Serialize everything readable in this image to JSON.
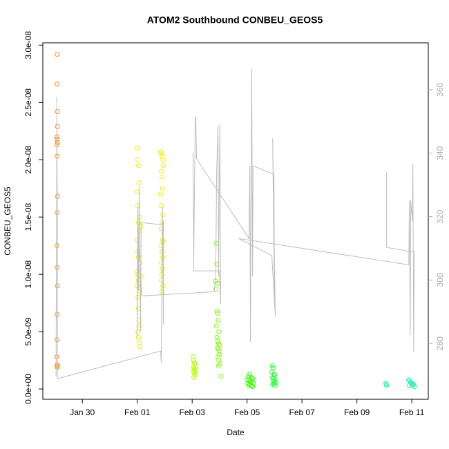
{
  "chart_data": {
    "type": "scatter",
    "title": "ATOM2 Southbound CONBEU_GEOS5",
    "x_label": "Date",
    "y_label": "CONBEU_GEOS5",
    "xlim": [
      28.56,
      42.6
    ],
    "xticks": [
      {
        "value": 30,
        "label": "Jan 30"
      },
      {
        "value": 32,
        "label": "Feb 01"
      },
      {
        "value": 34,
        "label": "Feb 03"
      },
      {
        "value": 36,
        "label": "Feb 05"
      },
      {
        "value": 38,
        "label": "Feb 07"
      },
      {
        "value": 40,
        "label": "Feb 09"
      },
      {
        "value": 42,
        "label": "Feb 11"
      }
    ],
    "ylim": [
      -9e-10,
      3.02e-08
    ],
    "yticks": [
      {
        "value": 0,
        "label": "0.0e+00"
      },
      {
        "value": 5e-09,
        "label": "5.0e-09"
      },
      {
        "value": 1e-08,
        "label": "1.0e-08"
      },
      {
        "value": 1.5e-08,
        "label": "1.5e-08"
      },
      {
        "value": 2e-08,
        "label": "2.0e-08"
      },
      {
        "value": 2.5e-08,
        "label": "2.5e-08"
      },
      {
        "value": 3e-08,
        "label": "3.0e-08"
      }
    ],
    "y2lim": [
      262.4,
      374.8
    ],
    "y2ticks": [
      280,
      300,
      320,
      340,
      360
    ],
    "series": [
      {
        "type": "scatter",
        "color": "#ff8c00",
        "x": [
          29.08,
          29.08,
          29.09,
          29.09,
          29.07,
          29.08,
          29.09,
          29.07,
          29.08,
          29.09,
          29.08,
          29.07,
          29.08,
          29.09,
          29.08,
          29.08,
          29.07,
          29.08,
          29.09,
          29.08
        ],
        "values": [
          2.92e-08,
          2.66e-08,
          2.42e-08,
          2.29e-08,
          2.2e-08,
          2.18e-08,
          2.15e-08,
          2.13e-08,
          2.03e-08,
          1.68e-08,
          1.54e-08,
          1.25e-08,
          1.06e-08,
          9e-09,
          6.5e-09,
          4.3e-09,
          2.8e-09,
          2.1e-09,
          2e-09,
          1.9e-09
        ]
      },
      {
        "type": "scatter",
        "color": "#eaf200",
        "x": [
          31.99,
          32.02,
          32.04,
          32.07,
          31.99,
          32.02,
          32.1,
          32.04,
          32.14,
          32.07,
          31.99,
          32.02,
          32.04,
          32.1,
          32.07,
          31.99,
          32.02,
          32.14,
          32.04,
          32.07,
          31.99,
          32.1,
          32.02,
          32.04,
          32.07,
          32.1,
          32.02,
          32.04,
          32.07,
          32.1
        ],
        "values": [
          2.1e-08,
          2e-08,
          1.95e-08,
          1.8e-08,
          1.72e-08,
          1.6e-08,
          1.5e-08,
          1.45e-08,
          1.42e-08,
          1.38e-08,
          1.3e-08,
          1.2e-08,
          1.15e-08,
          1.1e-08,
          1.05e-08,
          1.02e-08,
          1e-08,
          9.8e-09,
          9.5e-09,
          9.2e-09,
          9e-09,
          8.5e-09,
          8e-09,
          7e-09,
          6e-09,
          5.5e-09,
          5e-09,
          4.5e-09,
          4e-09,
          3.7e-09
        ]
      },
      {
        "type": "scatter",
        "color": "#eaf200",
        "x": [
          32.85,
          32.88,
          32.9,
          32.93,
          32.95,
          32.87,
          32.9,
          32.92,
          32.85,
          32.88,
          32.93,
          32.9,
          32.87,
          32.92,
          32.95,
          32.88,
          32.9,
          32.93,
          32.87,
          32.92,
          32.9,
          32.88,
          32.93,
          32.9
        ],
        "values": [
          2.07e-08,
          2.05e-08,
          2.03e-08,
          2e-08,
          1.95e-08,
          1.9e-08,
          1.85e-08,
          1.75e-08,
          1.7e-08,
          1.6e-08,
          1.52e-08,
          1.45e-08,
          1.4e-08,
          1.3e-08,
          1.28e-08,
          1.25e-08,
          1.2e-08,
          1.15e-08,
          1.1e-08,
          1.05e-08,
          1e-08,
          9.5e-09,
          9e-09,
          8.5e-09
        ]
      },
      {
        "type": "scatter",
        "color": "#b4ff00",
        "x": [
          34.03,
          34.05,
          34.08,
          34.1,
          34.13,
          34.04,
          34.07,
          34.09,
          34.12,
          34.05,
          34.08,
          34.1,
          34.06
        ],
        "values": [
          2.8e-09,
          2.5e-09,
          2.3e-09,
          2.2e-09,
          2e-09,
          1.9e-09,
          1.8e-09,
          1.7e-09,
          1.6e-09,
          1.5e-09,
          1.4e-09,
          1.2e-09,
          1e-09
        ]
      },
      {
        "type": "scatter",
        "color": "#7cff00",
        "x": [
          34.88,
          34.9,
          34.85,
          34.93,
          34.87,
          34.9,
          34.92,
          34.95,
          34.88,
          34.97,
          34.9,
          34.93,
          34.96,
          34.99,
          34.92,
          34.95,
          34.98,
          35.0,
          34.94,
          34.97,
          35.01,
          34.96,
          35.05
        ],
        "values": [
          1.27e-08,
          1.09e-08,
          9.4e-09,
          9.2e-09,
          8.7e-09,
          6.8e-09,
          6.6e-09,
          6e-09,
          5.5e-09,
          5e-09,
          4.5e-09,
          4.2e-09,
          4e-09,
          3.8e-09,
          3.6e-09,
          3.5e-09,
          3.3e-09,
          3e-09,
          2.8e-09,
          2.5e-09,
          2.2e-09,
          2e-09,
          1.1e-09
        ]
      },
      {
        "type": "scatter",
        "color": "#33ff00",
        "x": [
          36.1,
          36.05,
          36.15,
          36.2,
          36.0,
          36.08,
          36.12,
          36.18,
          36.23,
          36.03,
          36.1,
          36.16,
          36.07,
          36.2
        ],
        "values": [
          1.3e-09,
          1.1e-09,
          1e-09,
          9e-10,
          8e-10,
          8e-10,
          7e-10,
          6e-10,
          5e-10,
          5e-10,
          4e-10,
          3e-10,
          3e-10,
          2e-10
        ]
      },
      {
        "type": "scatter",
        "color": "#22ff33",
        "x": [
          36.92,
          36.95,
          36.9,
          36.98,
          37.0,
          36.93,
          36.97,
          37.02,
          36.95,
          37.05,
          36.99,
          36.93,
          37.01
        ],
        "values": [
          2e-09,
          1.8e-09,
          1.5e-09,
          1.3e-09,
          1.2e-09,
          1e-09,
          9e-10,
          8e-10,
          7e-10,
          6e-10,
          5e-10,
          4e-10,
          3e-10
        ]
      },
      {
        "type": "scatter",
        "color": "#33ffaa",
        "x": [
          41.05,
          41.07,
          41.06,
          41.08
        ],
        "values": [
          5e-10,
          4e-10,
          4e-10,
          3e-10
        ]
      },
      {
        "type": "scatter",
        "color": "#33eebb",
        "x": [
          41.88,
          41.92,
          41.95,
          41.98,
          42.01,
          42.04,
          42.07,
          41.9,
          42.0,
          42.1
        ],
        "values": [
          8e-10,
          7e-10,
          6e-10,
          5e-10,
          5e-10,
          4e-10,
          4e-10,
          3e-10,
          3e-10,
          2e-10
        ]
      },
      {
        "type": "line",
        "axis": "y2",
        "color": "#bebebe",
        "x": [
          29.04,
          29.07,
          29.07,
          29.09,
          29.09,
          32.85,
          32.87,
          32.9,
          32.92,
          32.95,
          32.95,
          32.85,
          32.14,
          32.12,
          32.07,
          32.04,
          32.02,
          31.99,
          32.04,
          32.17,
          34.81,
          34.86,
          34.89,
          34.94,
          34.96,
          35.01,
          35.04,
          34.99,
          34.06,
          34.03,
          34.06,
          34.11,
          34.13,
          34.16,
          36.07,
          36.1,
          36.12,
          36.17,
          36.2,
          36.22,
          36.98,
          37.0,
          36.93,
          37.03,
          36.9,
          35.69,
          41.89,
          41.91,
          41.94,
          41.96,
          42.02,
          42.04,
          42.07,
          42.09,
          41.08,
          41.08
        ],
        "values": [
          269.5,
          344.7,
          357.8,
          312.0,
          268.9,
          277.6,
          273.9,
          301.1,
          322.9,
          285.9,
          318.6,
          317.5,
          318.1,
          283.7,
          329.5,
          296.8,
          322.9,
          281.5,
          312.0,
          295.0,
          296.3,
          303.3,
          333.8,
          348.6,
          301.1,
          349.1,
          292.4,
          302.9,
          302.9,
          340.3,
          307.7,
          350.2,
          351.7,
          338.2,
          313.1,
          336.0,
          280.4,
          366.5,
          301.1,
          336.0,
          333.4,
          292.9,
          344.7,
          288.5,
          307.7,
          313.1,
          304.8,
          325.1,
          282.6,
          325.1,
          318.6,
          336.6,
          277.2,
          308.8,
          310.3,
          334.0
        ]
      }
    ]
  }
}
